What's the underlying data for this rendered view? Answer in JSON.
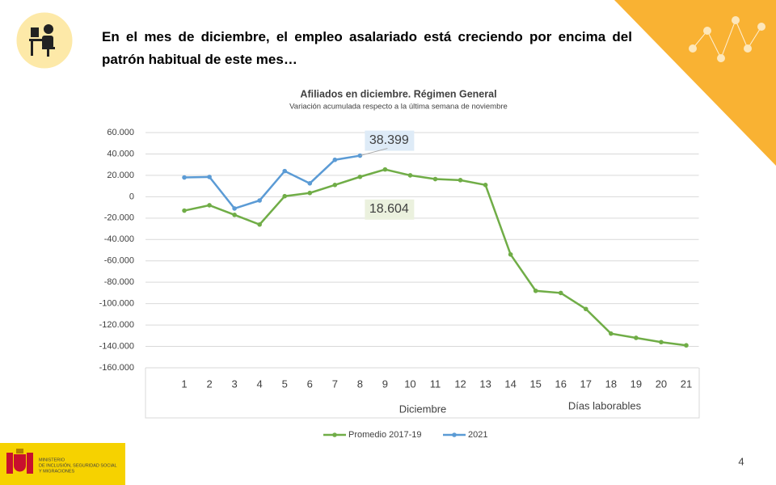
{
  "slide": {
    "heading": "En el mes de diciembre, el empleo asalariado está creciendo por encima del patrón habitual de este mes…",
    "page_number": "4",
    "ministry": [
      "MINISTERIO",
      "DE INCLUSIÓN, SEGURIDAD SOCIAL",
      "Y MIGRACIONES"
    ]
  },
  "chart_data": {
    "type": "line",
    "title": "Afiliados en diciembre. Régimen General",
    "subtitle": "Variación acumulada respecto a la última semana de noviembre",
    "x_labels": [
      "Diciembre",
      "Días laborables"
    ],
    "categories": [
      "1",
      "2",
      "3",
      "4",
      "5",
      "6",
      "7",
      "8",
      "9",
      "10",
      "11",
      "12",
      "13",
      "14",
      "15",
      "16",
      "17",
      "18",
      "19",
      "20",
      "21"
    ],
    "series": [
      {
        "name": "Promedio 2017-19",
        "color": "#70ad47",
        "values": [
          -13000,
          -8000,
          -17000,
          -26000,
          500,
          3500,
          11000,
          18604,
          25500,
          20000,
          16500,
          15500,
          11000,
          -54000,
          -88000,
          -90000,
          -105000,
          -128000,
          -132000,
          -136000,
          -139000
        ],
        "value_labels": [
          null,
          null,
          null,
          null,
          null,
          null,
          null,
          "18.604",
          null,
          null,
          null,
          null,
          null,
          null,
          null,
          null,
          null,
          null,
          null,
          null,
          null
        ]
      },
      {
        "name": "2021",
        "color": "#5b9bd5",
        "values": [
          18000,
          18500,
          -11000,
          -3500,
          24000,
          12500,
          34500,
          38399,
          null,
          null,
          null,
          null,
          null,
          null,
          null,
          null,
          null,
          null,
          null,
          null,
          null
        ],
        "value_labels": [
          null,
          null,
          null,
          null,
          null,
          null,
          null,
          "38.399",
          null,
          null,
          null,
          null,
          null,
          null,
          null,
          null,
          null,
          null,
          null,
          null,
          null
        ]
      }
    ],
    "ylim": [
      -160000,
      60000
    ],
    "yticks": [
      {
        "value": 60000,
        "label": "60.000"
      },
      {
        "value": 40000,
        "label": "40.000"
      },
      {
        "value": 20000,
        "label": "20.000"
      },
      0,
      {
        "value": -20000,
        "label": "-20.000"
      },
      {
        "value": -40000,
        "label": "-40.000"
      },
      {
        "value": -60000,
        "label": "-60.000"
      },
      {
        "value": -80000,
        "label": "-80.000"
      },
      {
        "value": -100000,
        "label": "-100.000"
      },
      {
        "value": -120000,
        "label": "-120.000"
      },
      {
        "value": -140000,
        "label": "-140.000"
      },
      {
        "value": -160000,
        "label": "-160.000"
      }
    ],
    "grid": true,
    "legend": "bottom"
  }
}
